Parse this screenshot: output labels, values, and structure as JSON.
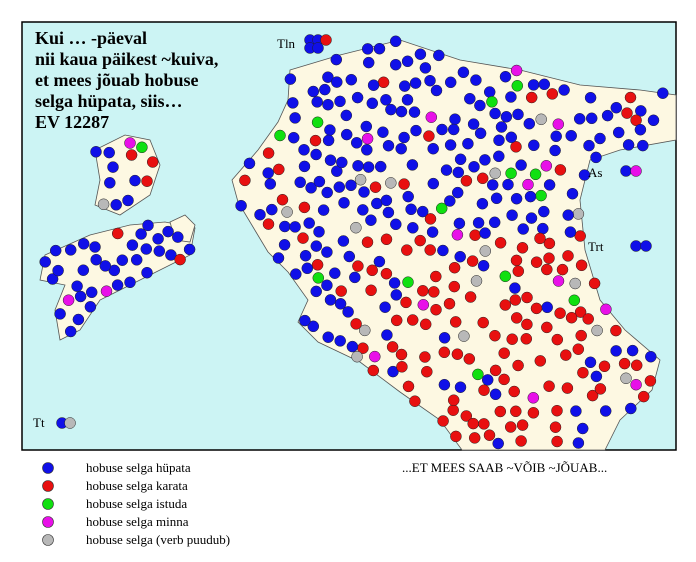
{
  "title_lines": [
    "Kui … -päeval",
    "nii kaua päikest ~kuiva,",
    "et mees jõuab hobuse",
    "selga hüpata, siis…",
    "EV 12287"
  ],
  "places": [
    "Tln",
    "As",
    "Trt",
    "Tt"
  ],
  "legend": [
    {
      "label": "hobuse selga hüpata",
      "color": "#1010e8"
    },
    {
      "label": "hobuse selga karata",
      "color": "#e81010"
    },
    {
      "label": "hobuse selga istuda",
      "color": "#10e010"
    },
    {
      "label": "hobuse selga minna",
      "color": "#e810e8"
    },
    {
      "label": "hobuse selga (verb puudub)",
      "color": "#b8b8b8"
    }
  ],
  "note": "...ET MEES SAAB ~VÕIB ~JÕUAB..."
}
